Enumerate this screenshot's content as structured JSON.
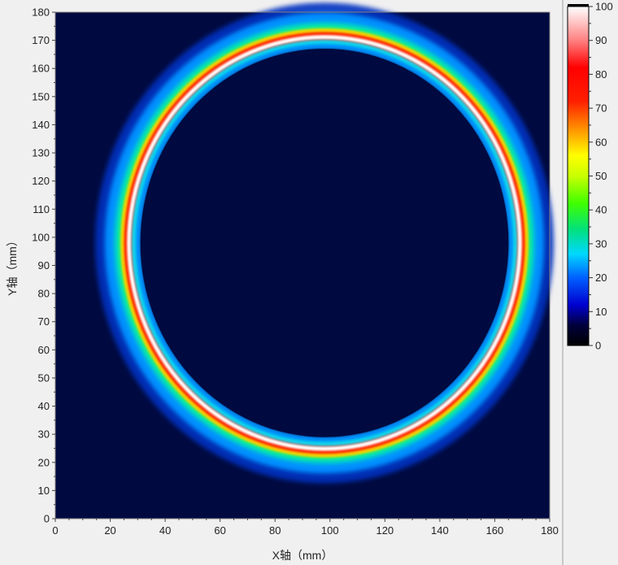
{
  "chart_data": {
    "type": "heatmap",
    "title": "",
    "xlabel": "X轴（mm）",
    "ylabel": "Y轴（mm）",
    "xlim": [
      0,
      180
    ],
    "ylim": [
      0,
      180
    ],
    "x_ticks": [
      "0",
      "20",
      "40",
      "60",
      "80",
      "100",
      "120",
      "140",
      "160",
      "180"
    ],
    "y_ticks": [
      "0",
      "10",
      "20",
      "30",
      "40",
      "50",
      "60",
      "70",
      "80",
      "90",
      "100",
      "110",
      "120",
      "130",
      "140",
      "150",
      "160",
      "170",
      "180"
    ],
    "colorbar": {
      "range": [
        0,
        100
      ],
      "ticks": [
        "0",
        "10",
        "20",
        "30",
        "40",
        "50",
        "60",
        "70",
        "80",
        "90",
        "100"
      ],
      "colors": [
        "#000040",
        "#0000ff",
        "#00a0ff",
        "#00ff80",
        "#ffff00",
        "#ff8000",
        "#ff0000",
        "#ffffff"
      ]
    },
    "background_color": "#000a40",
    "ring": {
      "center": [
        98,
        98
      ],
      "inner_radius": [
        67,
        69
      ],
      "peak_radius": [
        71,
        73
      ],
      "outer_radius": [
        78,
        80
      ],
      "peak_value": 100,
      "inner_edge_value": 22
    }
  }
}
